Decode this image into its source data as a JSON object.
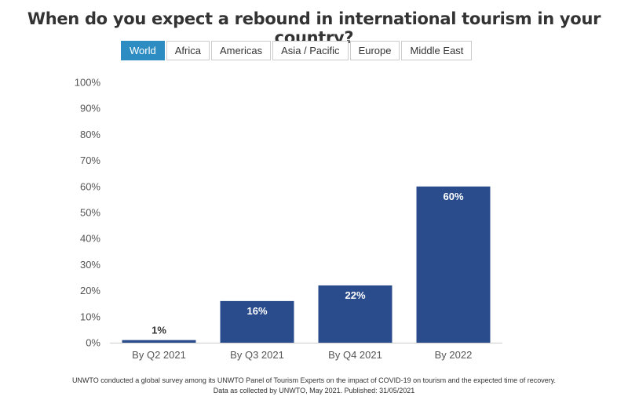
{
  "title": "When do you expect a rebound in international tourism in your country?",
  "tabs": [
    {
      "label": "World",
      "active": true
    },
    {
      "label": "Africa",
      "active": false
    },
    {
      "label": "Americas",
      "active": false
    },
    {
      "label": "Asia / Pacific",
      "active": false
    },
    {
      "label": "Europe",
      "active": false
    },
    {
      "label": "Middle East",
      "active": false
    }
  ],
  "colors": {
    "bar": "#2b4c8c",
    "tab_active": "#2d8cc2",
    "axis": "#cccccc"
  },
  "chart_data": {
    "type": "bar",
    "categories": [
      "By Q2 2021",
      "By Q3 2021",
      "By Q4 2021",
      "By 2022"
    ],
    "values": [
      1,
      16,
      22,
      60
    ],
    "data_labels": [
      "1%",
      "16%",
      "22%",
      "60%"
    ],
    "y_ticks": [
      "0%",
      "10%",
      "20%",
      "30%",
      "40%",
      "50%",
      "60%",
      "70%",
      "80%",
      "90%",
      "100%"
    ],
    "ylim": [
      0,
      100
    ],
    "grid": false,
    "legend": "none"
  },
  "footnote": {
    "line1": "UNWTO conducted a global survey among its UNWTO Panel of Tourism Experts on the impact of COVID-19 on tourism and the expected time of recovery.",
    "line2": "Data as collected by UNWTO, May 2021. Published: 31/05/2021"
  }
}
